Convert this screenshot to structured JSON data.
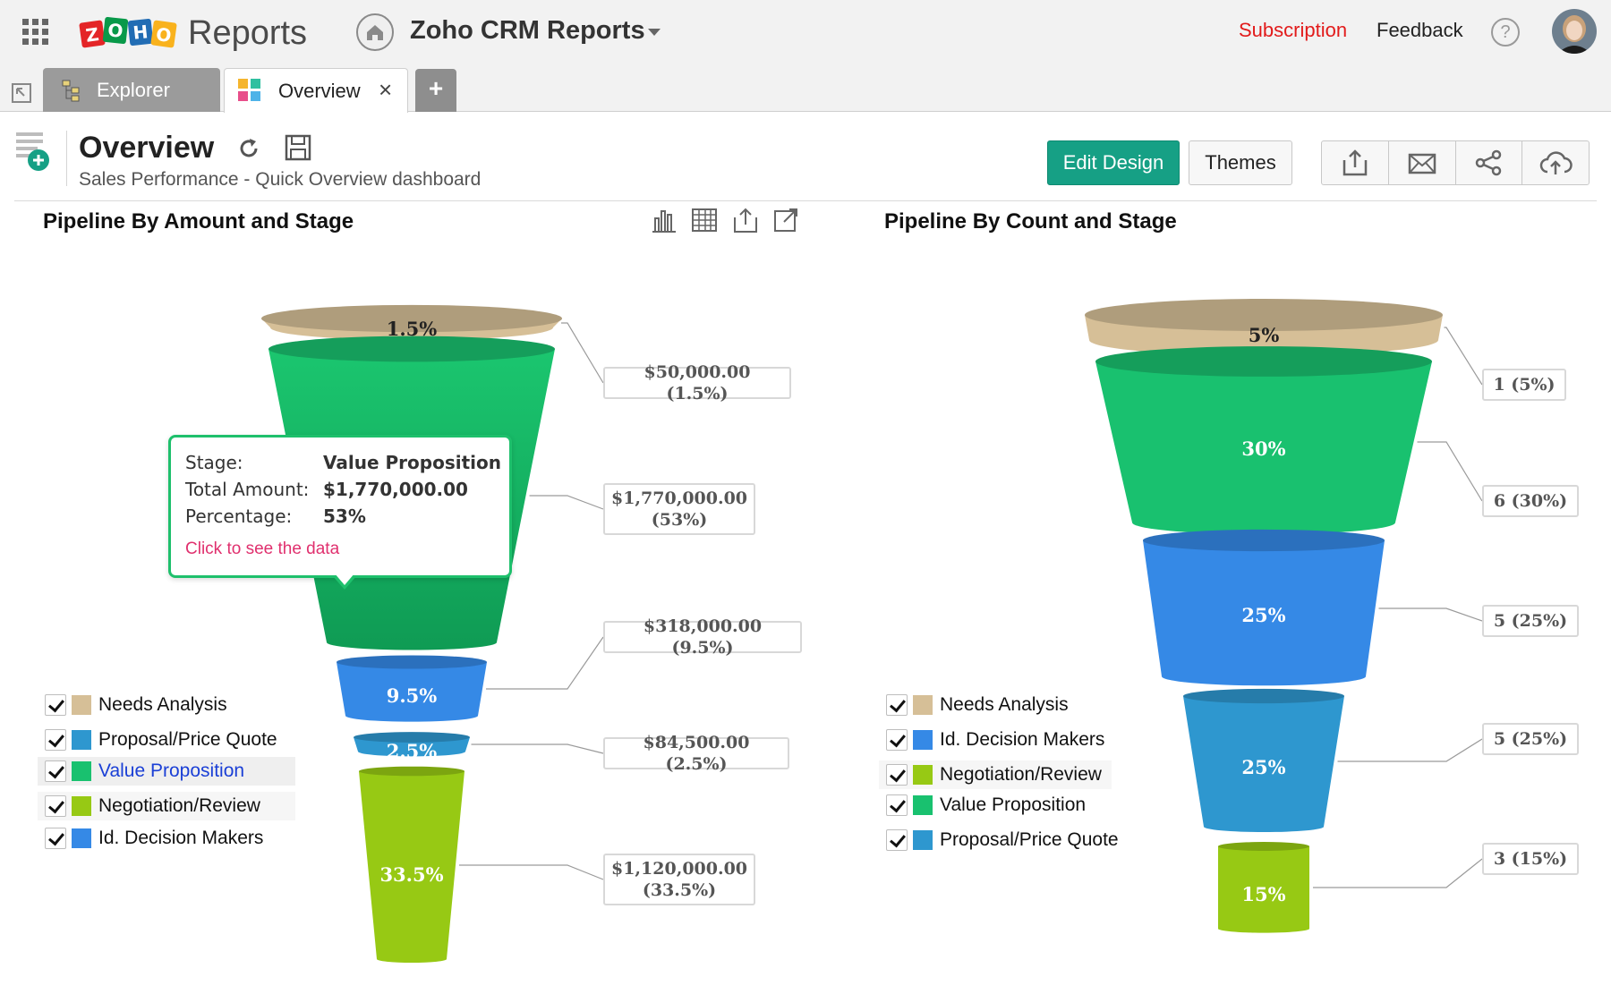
{
  "app": {
    "brand": "ZOHO",
    "name": "Reports",
    "workspace": "Zoho CRM Reports",
    "subscription": "Subscription",
    "feedback": "Feedback",
    "help": "?",
    "colors": {
      "accent": "#16a085",
      "subscription": "#e21b1b"
    }
  },
  "tabs": [
    {
      "label": "Explorer",
      "active": false
    },
    {
      "label": "Overview",
      "active": true,
      "close": "×"
    }
  ],
  "tab_add": "+",
  "header": {
    "title": "Overview",
    "subtitle": "Sales Performance - Quick Overview dashboard",
    "edit_design": "Edit Design",
    "themes": "Themes",
    "actions": [
      "export-icon",
      "email-icon",
      "share-icon",
      "publish-icon"
    ]
  },
  "widgets": [
    {
      "title": "Pipeline By Amount and Stage",
      "tools": [
        "chart-icon",
        "table-icon",
        "export-icon",
        "open-icon"
      ],
      "legend": [
        {
          "label": "Needs Analysis",
          "color": "#d6bf97",
          "checked": true
        },
        {
          "label": "Proposal/Price Quote",
          "color": "#2e97cf",
          "checked": true
        },
        {
          "label": "Value Proposition",
          "color": "#19c16f",
          "checked": true,
          "highlighted": true
        },
        {
          "label": "Negotiation/Review",
          "color": "#97c914",
          "checked": true
        },
        {
          "label": "Id. Decision Makers",
          "color": "#3589e6",
          "checked": true
        }
      ],
      "tooltip": {
        "rows": [
          {
            "key": "Stage:",
            "value": "Value Proposition"
          },
          {
            "key": "Total Amount:",
            "value": "$1,770,000.00"
          },
          {
            "key": "Percentage:",
            "value": "53%"
          }
        ],
        "link": "Click to see the data"
      }
    },
    {
      "title": "Pipeline By Count and Stage",
      "legend": [
        {
          "label": "Needs Analysis",
          "color": "#d6bf97",
          "checked": true
        },
        {
          "label": "Id. Decision Makers",
          "color": "#3589e6",
          "checked": true
        },
        {
          "label": "Negotiation/Review",
          "color": "#97c914",
          "checked": true
        },
        {
          "label": "Value Proposition",
          "color": "#19c16f",
          "checked": true
        },
        {
          "label": "Proposal/Price Quote",
          "color": "#2e97cf",
          "checked": true
        }
      ]
    }
  ],
  "chart_data": [
    {
      "type": "funnel",
      "title": "Pipeline By Amount and Stage",
      "stages": [
        {
          "stage": "Needs Analysis",
          "value": 50000,
          "percent": 1.5,
          "label": "1.5%",
          "callout": "$50,000.00 (1.5%)",
          "color": "#d6bf97"
        },
        {
          "stage": "Value Proposition",
          "value": 1770000,
          "percent": 53,
          "label": "",
          "callout": "$1,770,000.00\n(53%)",
          "color": "#19c16f"
        },
        {
          "stage": "Id. Decision Makers",
          "value": 318000,
          "percent": 9.5,
          "label": "9.5%",
          "callout": "$318,000.00 (9.5%)",
          "color": "#3589e6"
        },
        {
          "stage": "Proposal/Price Quote",
          "value": 84500,
          "percent": 2.5,
          "label": "2.5%",
          "callout": "$84,500.00 (2.5%)",
          "color": "#2e97cf"
        },
        {
          "stage": "Negotiation/Review",
          "value": 1120000,
          "percent": 33.5,
          "label": "33.5%",
          "callout": "$1,120,000.00\n(33.5%)",
          "color": "#97c914"
        }
      ]
    },
    {
      "type": "funnel",
      "title": "Pipeline By Count and Stage",
      "stages": [
        {
          "stage": "Needs Analysis",
          "value": 1,
          "percent": 5,
          "label": "5%",
          "callout": "1 (5%)",
          "color": "#d6bf97"
        },
        {
          "stage": "Value Proposition",
          "value": 6,
          "percent": 30,
          "label": "30%",
          "callout": "6 (30%)",
          "color": "#19c16f"
        },
        {
          "stage": "Id. Decision Makers",
          "value": 5,
          "percent": 25,
          "label": "25%",
          "callout": "5 (25%)",
          "color": "#3589e6"
        },
        {
          "stage": "Proposal/Price Quote",
          "value": 5,
          "percent": 25,
          "label": "25%",
          "callout": "5 (25%)",
          "color": "#2e97cf"
        },
        {
          "stage": "Negotiation/Review",
          "value": 3,
          "percent": 15,
          "label": "15%",
          "callout": "3 (15%)",
          "color": "#97c914"
        }
      ]
    }
  ]
}
